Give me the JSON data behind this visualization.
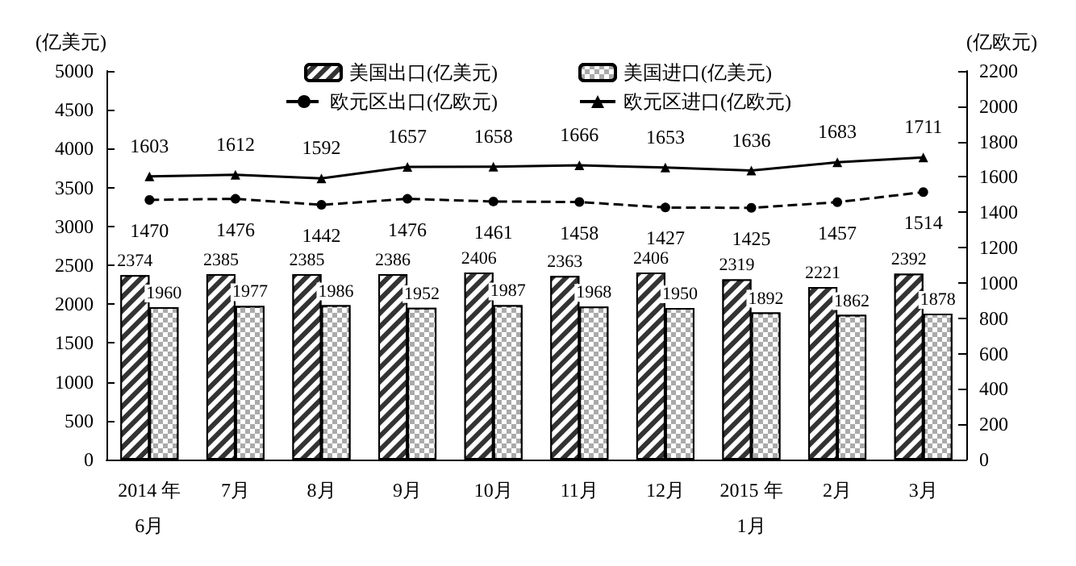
{
  "chart_data": {
    "type": "bar",
    "ylabel": "(亿美元)",
    "y2label": "(亿欧元)",
    "categories": [
      "2014 年\n6月",
      "7月",
      "8月",
      "9月",
      "10月",
      "11月",
      "12月",
      "2015 年\n1月",
      "2月",
      "3月"
    ],
    "series": [
      {
        "name": "美国出口(亿美元)",
        "color": "#333333",
        "values": [
          2374,
          2385,
          2385,
          2386,
          2406,
          2363,
          2406,
          2319,
          2221,
          2392
        ]
      },
      {
        "name": "美国进口(亿美元)",
        "color": "#aaaaaa",
        "values": [
          1960,
          1977,
          1986,
          1952,
          1987,
          1968,
          1950,
          1892,
          1862,
          1878
        ]
      },
      {
        "name": "欧元区出口(亿欧元)",
        "type": "line",
        "axis": "y2",
        "color": "#000000",
        "marker": "circle",
        "line_style": "dashed",
        "values": [
          1470,
          1476,
          1442,
          1476,
          1461,
          1458,
          1427,
          1425,
          1457,
          1514
        ]
      },
      {
        "name": "欧元区进口(亿欧元)",
        "type": "line",
        "axis": "y2",
        "color": "#000000",
        "marker": "triangle",
        "line_style": "solid",
        "values": [
          1603,
          1612,
          1592,
          1657,
          1658,
          1666,
          1653,
          1636,
          1683,
          1711
        ]
      }
    ],
    "ylim": [
      0,
      5000
    ],
    "yticks": [
      0,
      500,
      1000,
      1500,
      2000,
      2500,
      3000,
      3500,
      4000,
      4500,
      5000
    ],
    "y2lim": [
      0,
      2200
    ],
    "y2ticks": [
      0,
      200,
      400,
      600,
      800,
      1000,
      1200,
      1400,
      1600,
      1800,
      2000,
      2200
    ],
    "data_labels": true,
    "grid": false,
    "legend": "top"
  }
}
